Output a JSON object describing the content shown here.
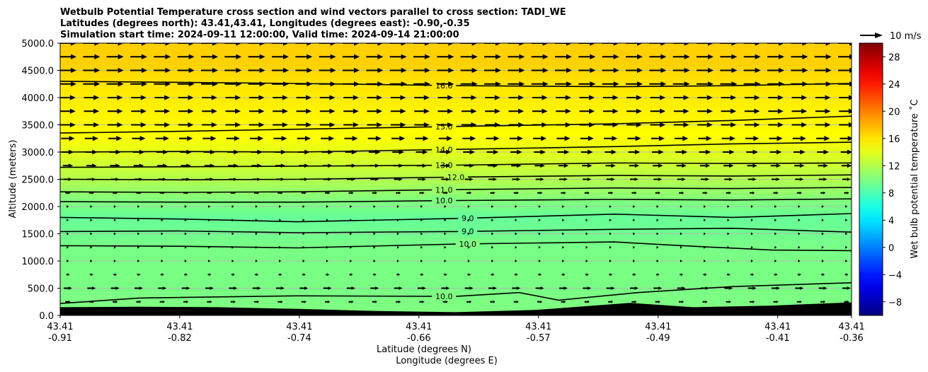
{
  "title_lines": [
    "Wetbulb Potential Temperature cross section and wind vectors parallel to cross section: TADI_WE",
    "Latitudes (degrees north): 43.41,43.41, Longitudes (degrees east): -0.90,-0.35",
    "Simulation start time: 2024-09-11 12:00:00, Valid time: 2024-09-14 21:00:00"
  ],
  "quiver_key_label": "10 m/s",
  "colorbar_label": "Wet bulb potential temperature ˚C",
  "chart_data": {
    "type": "heatmap",
    "ylabel": "Altitude (meters)",
    "xlabel_lines": [
      "Latitude (degrees N)",
      "Longitude (degrees E)"
    ],
    "ylim": [
      0,
      5000
    ],
    "y_ticks": [
      "0.0",
      "500.0",
      "1000.0",
      "1500.0",
      "2000.0",
      "2500.0",
      "3000.0",
      "3500.0",
      "4000.0",
      "4500.0",
      "5000.0"
    ],
    "x_ticks": [
      {
        "lat": "43.41",
        "lon": "-0.91"
      },
      {
        "lat": "43.41",
        "lon": "-0.82"
      },
      {
        "lat": "43.41",
        "lon": "-0.74"
      },
      {
        "lat": "43.41",
        "lon": "-0.66"
      },
      {
        "lat": "43.41",
        "lon": "-0.57"
      },
      {
        "lat": "43.41",
        "lon": "-0.49"
      },
      {
        "lat": "43.41",
        "lon": "-0.41"
      },
      {
        "lat": "43.41",
        "lon": "-0.36"
      }
    ],
    "x_positions": [
      0.0,
      0.1511,
      0.3022,
      0.4533,
      0.6044,
      0.7556,
      0.9067,
      1.0
    ],
    "colorbar": {
      "range": [
        -10,
        30
      ],
      "tick_values": [
        -8,
        -4,
        0,
        4,
        8,
        12,
        16,
        20,
        24,
        28
      ],
      "tick_labels": [
        "−8",
        "−4",
        "0",
        "4",
        "8",
        "12",
        "16",
        "20",
        "24",
        "28"
      ],
      "colormap": "jet"
    },
    "temperature_profile": [
      {
        "alt": 0,
        "t": 10.0
      },
      {
        "alt": 500,
        "t": 9.8
      },
      {
        "alt": 1000,
        "t": 9.8
      },
      {
        "alt": 1300,
        "t": 9.7
      },
      {
        "alt": 1550,
        "t": 9.3
      },
      {
        "alt": 1800,
        "t": 9.0
      },
      {
        "alt": 2000,
        "t": 9.8
      },
      {
        "alt": 2100,
        "t": 10.0
      },
      {
        "alt": 2300,
        "t": 11.0
      },
      {
        "alt": 2500,
        "t": 12.0
      },
      {
        "alt": 2750,
        "t": 13.0
      },
      {
        "alt": 3000,
        "t": 14.0
      },
      {
        "alt": 3300,
        "t": 15.0
      },
      {
        "alt": 3600,
        "t": 15.3
      },
      {
        "alt": 4250,
        "t": 16.0
      },
      {
        "alt": 4600,
        "t": 16.8
      },
      {
        "alt": 5000,
        "t": 16.9
      }
    ],
    "contours": [
      {
        "label": "16.0",
        "x": [
          0,
          0.15,
          0.3,
          0.5,
          0.7,
          0.85,
          1.0
        ],
        "alt": [
          4300,
          4280,
          4260,
          4220,
          4200,
          4220,
          4260
        ],
        "label_x": 0.485
      },
      {
        "label": "15.0",
        "x": [
          0,
          0.15,
          0.3,
          0.5,
          0.7,
          0.85,
          1.0
        ],
        "alt": [
          3350,
          3380,
          3420,
          3470,
          3520,
          3580,
          3660
        ],
        "label_x": 0.485
      },
      {
        "label": "14.0",
        "x": [
          0,
          0.15,
          0.3,
          0.5,
          0.7,
          0.85,
          1.0
        ],
        "alt": [
          3000,
          3010,
          3000,
          3050,
          3100,
          3150,
          3180
        ],
        "label_x": 0.485
      },
      {
        "label": "13.0",
        "x": [
          0,
          0.15,
          0.3,
          0.5,
          0.7,
          0.85,
          1.0
        ],
        "alt": [
          2720,
          2730,
          2740,
          2760,
          2800,
          2790,
          2800
        ],
        "label_x": 0.485
      },
      {
        "label": "12.0",
        "x": [
          0,
          0.15,
          0.3,
          0.5,
          0.7,
          0.85,
          1.0
        ],
        "alt": [
          2500,
          2490,
          2500,
          2540,
          2570,
          2560,
          2580
        ],
        "label_x": 0.5
      },
      {
        "label": "11.0",
        "x": [
          0,
          0.15,
          0.3,
          0.5,
          0.7,
          0.85,
          1.0
        ],
        "alt": [
          2270,
          2260,
          2270,
          2310,
          2340,
          2330,
          2350
        ],
        "label_x": 0.485
      },
      {
        "label": "10.0",
        "x": [
          0,
          0.15,
          0.3,
          0.5,
          0.7,
          0.85,
          1.0
        ],
        "alt": [
          2090,
          2080,
          2080,
          2110,
          2130,
          2120,
          2140
        ],
        "label_x": 0.485
      },
      {
        "label": "9.0",
        "x": [
          0,
          0.15,
          0.3,
          0.5,
          0.7,
          0.85,
          1.0
        ],
        "alt": [
          1800,
          1770,
          1720,
          1780,
          1860,
          1800,
          1870
        ],
        "label_x": 0.515
      },
      {
        "label": "9.0",
        "x": [
          0,
          0.15,
          0.3,
          0.5,
          0.7,
          0.85,
          1.0
        ],
        "alt": [
          1540,
          1550,
          1520,
          1540,
          1580,
          1600,
          1530
        ],
        "label_x": 0.515
      },
      {
        "label": "10.0",
        "x": [
          0,
          0.15,
          0.3,
          0.5,
          0.7,
          0.8,
          0.9,
          1.0
        ],
        "alt": [
          1280,
          1270,
          1240,
          1310,
          1350,
          1270,
          1200,
          1190
        ],
        "label_x": 0.515
      },
      {
        "label": "10.0",
        "x": [
          0,
          0.1,
          0.3,
          0.5,
          0.58,
          0.63,
          0.73,
          0.85,
          1.0
        ],
        "alt": [
          220,
          320,
          360,
          350,
          420,
          280,
          420,
          530,
          600
        ],
        "label_x": 0.485
      }
    ],
    "terrain": {
      "x": [
        0,
        0.1,
        0.2,
        0.3,
        0.4,
        0.5,
        0.6,
        0.72,
        0.8,
        0.9,
        1.0
      ],
      "alt": [
        150,
        160,
        150,
        120,
        80,
        60,
        100,
        230,
        150,
        180,
        240
      ]
    },
    "wind": {
      "levels": [
        250,
        500,
        750,
        1000,
        1250,
        1500,
        1750,
        2000,
        2250,
        2500,
        2750,
        3000,
        3250,
        3500,
        3750,
        4000,
        4250,
        4500,
        4750,
        5000
      ],
      "speeds": [
        3,
        5,
        2,
        1,
        1,
        1,
        1,
        1,
        3,
        5,
        6,
        7,
        8,
        9,
        9,
        9,
        10,
        10,
        10,
        10
      ],
      "columns": 34,
      "key_speed": 10
    }
  }
}
